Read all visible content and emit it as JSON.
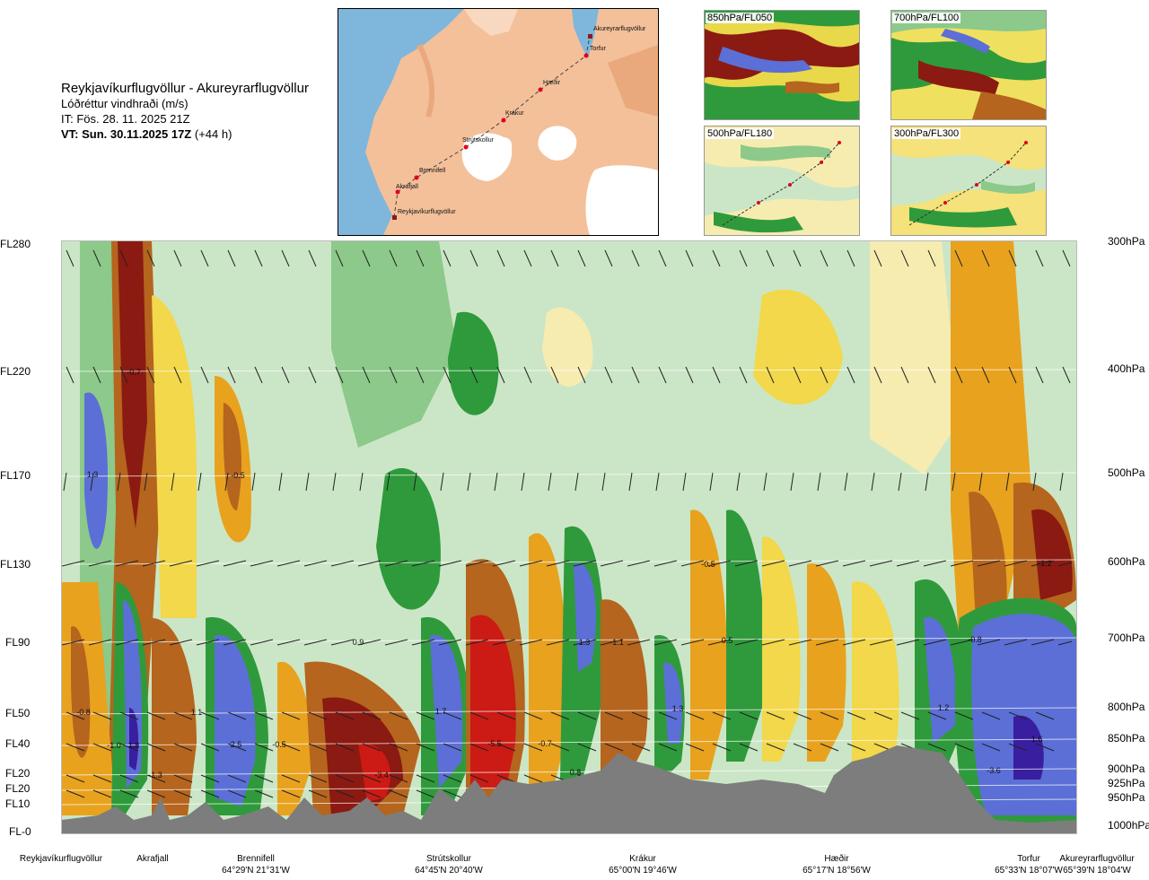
{
  "header": {
    "route": "Reykjavíkurflugvöllur - Akureyrarflugvöllur",
    "parameter": "Lóðréttur vindhraði (m/s)",
    "issue_time": "IT: Fös. 28. 11. 2025 21Z",
    "valid_time_bold": "VT: Sun. 30.11.2025 17Z",
    "valid_time_offset": "(+44 h)"
  },
  "route_map": {
    "points": [
      "Akureyrarflugvöllur",
      "Torfur",
      "Hæðir",
      "Krákur",
      "Strútskollur",
      "Brennifell",
      "Akrafjall",
      "Reykjavíkurflugvöllur"
    ],
    "colors": {
      "sea": "#7fb6dc",
      "land": "#f3c09a",
      "ice": "#ffffff",
      "route": "#444444",
      "marker": "#e0001a"
    }
  },
  "thumbnails": [
    {
      "label": "850hPa/FL050"
    },
    {
      "label": "700hPa/FL100"
    },
    {
      "label": "500hPa/FL180"
    },
    {
      "label": "300hPa/FL300"
    }
  ],
  "flight_levels": [
    "FL280",
    "FL220",
    "FL170",
    "FL130",
    "FL90",
    "FL50",
    "FL40",
    "FL20",
    "FL20",
    "FL10",
    "FL-0"
  ],
  "pressure_levels": [
    "300hPa",
    "400hPa",
    "500hPa",
    "600hPa",
    "700hPa",
    "800hPa",
    "850hPa",
    "900hPa",
    "925hPa",
    "950hPa",
    "1000hPa"
  ],
  "waypoints": [
    {
      "name": "Reykjavíkurflugvöllur",
      "coord": ""
    },
    {
      "name": "Akrafjall",
      "coord": ""
    },
    {
      "name": "Brennifell",
      "coord": "64°29'N 21°31'W"
    },
    {
      "name": "Strútskollur",
      "coord": "64°45'N 20°40'W"
    },
    {
      "name": "Krákur",
      "coord": "65°00'N 19°46'W"
    },
    {
      "name": "Hæðir",
      "coord": "65°17'N 18°56'W"
    },
    {
      "name": "Torfur",
      "coord": "65°33'N 18°07'W"
    },
    {
      "name": "Akureyrarflugvöllur",
      "coord": "65°39'N 18°04'W"
    }
  ],
  "field_labels": [
    "-0.7",
    "1.3",
    "-0.5",
    "-0.5",
    "-1.2",
    "0.9",
    "1.3",
    "-1.1",
    "0.5",
    "-0.8",
    "-0.8",
    "-1.0",
    "1.8",
    "1.1",
    "2.5",
    "-0.5",
    "1.7",
    "-5.5",
    "-0.7",
    "1.3",
    "1.2",
    "1.6",
    "-1.3",
    "-3.4",
    "0.8",
    "-3.6"
  ],
  "palette": {
    "strong_down": "#8b1a12",
    "down": "#b5651d",
    "weak_down": "#e8a21e",
    "slight_down": "#f2d84a",
    "near_zero": "#fbf4c4",
    "slight_up": "#cbe6c6",
    "weak_up": "#8cc98a",
    "up": "#2f9a3c",
    "strong_up": "#5b6fd6",
    "extreme_up": "#3a1ea0",
    "extreme_down": "#cc1a14",
    "terrain": "#7d7d7d"
  }
}
